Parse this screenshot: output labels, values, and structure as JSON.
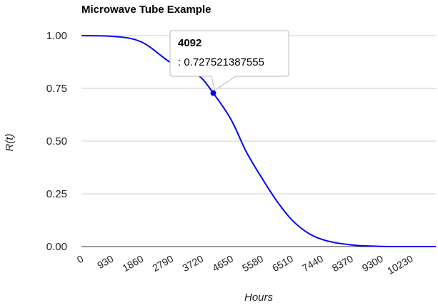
{
  "chart_data": {
    "type": "line",
    "title": "Microwave Tube Example",
    "xlabel": "Hours",
    "ylabel": "R(t)",
    "xlim": [
      0,
      11000
    ],
    "ylim": [
      0,
      1
    ],
    "x_ticks": [
      "0",
      "930",
      "1860",
      "2790",
      "3720",
      "4650",
      "5580",
      "6510",
      "7440",
      "8370",
      "9300",
      "10230"
    ],
    "y_ticks": [
      "0.00",
      "0.25",
      "0.50",
      "0.75",
      "1.00"
    ],
    "grid": true,
    "series": [
      {
        "color": "#0000ff",
        "x": [
          0,
          930,
          1860,
          2790,
          3720,
          4092,
          4650,
          5115,
          5580,
          6045,
          6510,
          6975,
          7440,
          8370,
          9300,
          10230,
          11000
        ],
        "y": [
          1.0,
          0.997,
          0.97,
          0.87,
          0.8,
          0.7275,
          0.6,
          0.45,
          0.33,
          0.22,
          0.13,
          0.07,
          0.035,
          0.008,
          0.001,
          0.0,
          0.0
        ]
      }
    ],
    "tooltip": {
      "title": "4092",
      "body": ": 0.727521387555",
      "x": 4092,
      "y": 0.7275
    }
  }
}
